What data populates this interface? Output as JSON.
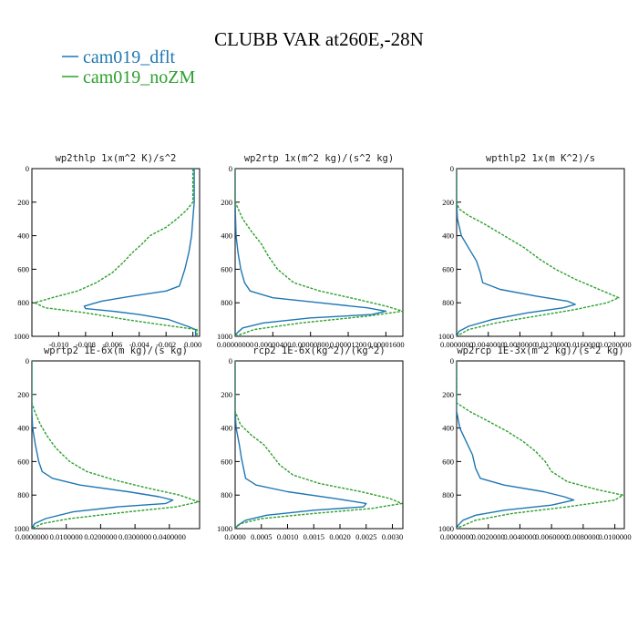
{
  "title": "CLUBB VAR at260E,-28N",
  "legend": [
    {
      "label": "cam019_dflt",
      "color": "#1f77b4",
      "dash": "solid"
    },
    {
      "label": "cam019_noZM",
      "color": "#2ca02c",
      "dash": "dashed"
    }
  ],
  "chart_data": [
    {
      "type": "line",
      "title": "wp2thlp  1x(m^2 K)/s^2",
      "xlim": [
        -0.012,
        0.0005
      ],
      "ylim": [
        1000,
        0
      ],
      "xticks": [
        "-0.010",
        "-0.008",
        "-0.006",
        "-0.004",
        "-0.002",
        "0.000"
      ],
      "xtick_values": [
        -0.01,
        -0.008,
        -0.006,
        -0.004,
        -0.002,
        0.0
      ],
      "yticks": [
        "0",
        "200",
        "400",
        "600",
        "800",
        "1000"
      ],
      "series": [
        {
          "name": "cam019_dflt",
          "y": [
            0,
            100,
            200,
            300,
            400,
            500,
            600,
            650,
            700,
            730,
            760,
            790,
            820,
            835,
            850,
            870,
            900,
            940,
            960,
            980,
            1000
          ],
          "x": [
            0.0001,
            0.0001,
            0.0001,
            0.0,
            -0.0001,
            -0.0003,
            -0.0006,
            -0.0008,
            -0.001,
            -0.002,
            -0.0045,
            -0.0068,
            -0.0081,
            -0.008,
            -0.006,
            -0.004,
            -0.0018,
            -0.0004,
            0.0002,
            0.0002,
            0.0002
          ]
        },
        {
          "name": "cam019_noZM",
          "y": [
            0,
            100,
            200,
            250,
            300,
            350,
            400,
            450,
            500,
            560,
            620,
            680,
            730,
            770,
            800,
            830,
            860,
            900,
            940,
            960,
            1000
          ],
          "x": [
            0.0,
            0.0,
            0.0,
            -0.0005,
            -0.0012,
            -0.002,
            -0.0032,
            -0.0038,
            -0.0045,
            -0.0052,
            -0.006,
            -0.0072,
            -0.0086,
            -0.0105,
            -0.0118,
            -0.011,
            -0.008,
            -0.005,
            -0.0015,
            0.0003,
            0.0003
          ]
        }
      ]
    },
    {
      "type": "line",
      "title": "wp2rtp  1x(m^2 kg)/(s^2 kg)",
      "xlim": [
        0,
        1.78e-05
      ],
      "ylim": [
        1000,
        0
      ],
      "xticks": [
        "0.00000000",
        "0.00000400",
        "0.00000800",
        "0.00001200",
        "0.00001600"
      ],
      "xtick_values": [
        0,
        4e-06,
        8e-06,
        1.2e-05,
        1.6e-05
      ],
      "yticks": [
        "0",
        "200",
        "400",
        "600",
        "800",
        "1000"
      ],
      "series": [
        {
          "name": "cam019_dflt",
          "y": [
            0,
            200,
            400,
            500,
            600,
            680,
            730,
            770,
            800,
            830,
            850,
            870,
            890,
            920,
            950,
            980,
            1000
          ],
          "x": [
            0,
            0,
            1e-07,
            3e-07,
            6e-07,
            1e-06,
            1.6e-06,
            4e-06,
            9e-06,
            1.4e-05,
            1.6e-05,
            1.45e-05,
            8e-06,
            3e-06,
            8e-07,
            2e-07,
            0
          ]
        },
        {
          "name": "cam019_noZM",
          "y": [
            0,
            200,
            300,
            380,
            450,
            520,
            600,
            680,
            730,
            780,
            820,
            850,
            880,
            920,
            960,
            990,
            1000
          ],
          "x": [
            0,
            0,
            8e-07,
            1.8e-06,
            2.8e-06,
            3.5e-06,
            4.5e-06,
            6.2e-06,
            9e-06,
            1.3e-05,
            1.6e-05,
            1.78e-05,
            1.4e-05,
            7e-06,
            2e-06,
            5e-07,
            0
          ]
        }
      ]
    },
    {
      "type": "line",
      "title": "wpthlp2  1x(m K^2)/s",
      "xlim": [
        0,
        0.0212
      ],
      "ylim": [
        1000,
        0
      ],
      "xticks": [
        "0.0000000",
        "0.0040000",
        "0.0080000",
        "0.0120000",
        "0.0160000",
        "0.0200000"
      ],
      "xtick_values": [
        0,
        0.004,
        0.008,
        0.012,
        0.016,
        0.02
      ],
      "yticks": [
        "0",
        "200",
        "400",
        "600",
        "800",
        "1000"
      ],
      "series": [
        {
          "name": "cam019_dflt",
          "y": [
            0,
            200,
            300,
            400,
            480,
            550,
            620,
            680,
            720,
            760,
            790,
            810,
            830,
            860,
            900,
            940,
            970,
            1000
          ],
          "x": [
            0,
            0,
            0.0001,
            0.0006,
            0.0016,
            0.0025,
            0.003,
            0.0033,
            0.0055,
            0.01,
            0.014,
            0.015,
            0.0135,
            0.009,
            0.0045,
            0.0015,
            0.0003,
            0
          ]
        },
        {
          "name": "cam019_noZM",
          "y": [
            0,
            200,
            240,
            280,
            330,
            400,
            470,
            540,
            600,
            660,
            700,
            740,
            770,
            800,
            840,
            880,
            920,
            960,
            1000
          ],
          "x": [
            0,
            0,
            0.0003,
            0.0015,
            0.0035,
            0.006,
            0.0085,
            0.0105,
            0.0125,
            0.015,
            0.017,
            0.019,
            0.0205,
            0.019,
            0.015,
            0.01,
            0.005,
            0.0015,
            0
          ]
        }
      ]
    },
    {
      "type": "line",
      "title": "wprtp2  1E-6x(m kg)/(s kg)",
      "xlim": [
        0,
        0.0488
      ],
      "ylim": [
        1000,
        0
      ],
      "xticks": [
        "0.0000000",
        "0.0100000",
        "0.0200000",
        "0.0300000",
        "0.0400000"
      ],
      "xtick_values": [
        0,
        0.01,
        0.02,
        0.03,
        0.04
      ],
      "yticks": [
        "0",
        "200",
        "400",
        "600",
        "800",
        "1000"
      ],
      "series": [
        {
          "name": "cam019_dflt",
          "y": [
            0,
            300,
            400,
            500,
            600,
            660,
            700,
            740,
            780,
            810,
            830,
            850,
            870,
            900,
            940,
            970,
            1000
          ],
          "x": [
            0,
            0,
            0.0002,
            0.001,
            0.002,
            0.003,
            0.006,
            0.014,
            0.028,
            0.037,
            0.041,
            0.039,
            0.025,
            0.012,
            0.004,
            0.0008,
            0
          ]
        },
        {
          "name": "cam019_noZM",
          "y": [
            0,
            250,
            300,
            380,
            450,
            520,
            600,
            660,
            710,
            760,
            800,
            840,
            870,
            900,
            940,
            970,
            1000
          ],
          "x": [
            0,
            0,
            0.0008,
            0.0025,
            0.0045,
            0.007,
            0.011,
            0.016,
            0.024,
            0.034,
            0.043,
            0.0485,
            0.042,
            0.028,
            0.011,
            0.003,
            0
          ]
        }
      ]
    },
    {
      "type": "line",
      "title": "rcp2  1E-6x(kg^2)/(kg^2)",
      "xlim": [
        0,
        0.0032
      ],
      "ylim": [
        1000,
        0
      ],
      "xticks": [
        "0.0000",
        "0.0005",
        "0.0010",
        "0.0015",
        "0.0020",
        "0.0025",
        "0.0030"
      ],
      "xtick_values": [
        0,
        0.0005,
        0.001,
        0.0015,
        0.002,
        0.0025,
        0.003
      ],
      "yticks": [
        "0",
        "200",
        "400",
        "600",
        "800",
        "1000"
      ],
      "series": [
        {
          "name": "cam019_dflt",
          "y": [
            0,
            300,
            400,
            500,
            580,
            640,
            700,
            740,
            780,
            820,
            850,
            870,
            890,
            920,
            950,
            980,
            1000
          ],
          "x": [
            0,
            0,
            2e-05,
            8e-05,
            0.00012,
            0.00016,
            0.0002,
            0.0004,
            0.001,
            0.0019,
            0.0025,
            0.00245,
            0.0015,
            0.0006,
            0.0002,
            5e-05,
            0
          ]
        },
        {
          "name": "cam019_noZM",
          "y": [
            0,
            300,
            380,
            440,
            500,
            560,
            620,
            680,
            730,
            780,
            820,
            850,
            880,
            910,
            940,
            970,
            1000
          ],
          "x": [
            0,
            0,
            0.0001,
            0.0003,
            0.00055,
            0.0007,
            0.00085,
            0.0011,
            0.0016,
            0.0024,
            0.00295,
            0.00318,
            0.0026,
            0.0015,
            0.0005,
            0.0001,
            0
          ]
        }
      ]
    },
    {
      "type": "line",
      "title": "wp2rcp  1E-3x(m^2 kg)/(s^2 kg)",
      "xlim": [
        0,
        0.0106
      ],
      "ylim": [
        1000,
        0
      ],
      "xticks": [
        "0.0000000",
        "0.0020000",
        "0.0040000",
        "0.0060000",
        "0.0080000",
        "0.0100000"
      ],
      "xtick_values": [
        0,
        0.002,
        0.004,
        0.006,
        0.008,
        0.01
      ],
      "yticks": [
        "0",
        "200",
        "400",
        "600",
        "800",
        "1000"
      ],
      "series": [
        {
          "name": "cam019_dflt",
          "y": [
            0,
            300,
            400,
            480,
            560,
            640,
            700,
            740,
            780,
            810,
            830,
            860,
            890,
            920,
            950,
            980,
            1000
          ],
          "x": [
            0,
            0,
            0.0002,
            0.0006,
            0.001,
            0.0012,
            0.0015,
            0.003,
            0.0055,
            0.0068,
            0.0074,
            0.006,
            0.003,
            0.0012,
            0.0004,
            0.0001,
            0
          ]
        },
        {
          "name": "cam019_noZM",
          "y": [
            0,
            250,
            300,
            360,
            420,
            480,
            540,
            600,
            660,
            720,
            770,
            800,
            830,
            870,
            910,
            950,
            990,
            1000
          ],
          "x": [
            0,
            0,
            0.0008,
            0.002,
            0.0032,
            0.0042,
            0.005,
            0.0056,
            0.006,
            0.007,
            0.009,
            0.0105,
            0.01,
            0.007,
            0.0035,
            0.0012,
            0.0002,
            0
          ]
        }
      ]
    }
  ]
}
